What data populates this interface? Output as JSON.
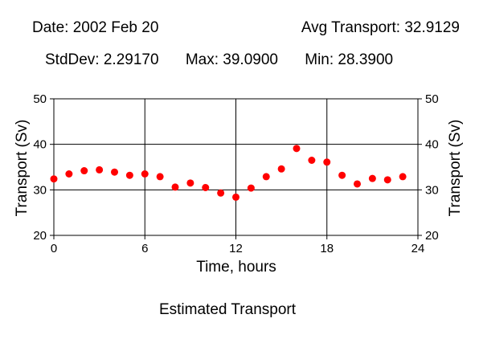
{
  "header": {
    "date": "Date: 2002 Feb 20",
    "avg": "Avg Transport: 32.9129",
    "stddev": "StdDev: 2.29170",
    "max": "Max: 39.0900",
    "min": "Min: 28.3900"
  },
  "caption": "Estimated Transport",
  "chart_data": {
    "type": "scatter",
    "title": "",
    "xlabel": "Time, hours",
    "ylabel": "Transport (Sv)",
    "xlim": [
      0,
      24
    ],
    "ylim": [
      20,
      50
    ],
    "xticks": [
      0,
      6,
      12,
      18,
      24
    ],
    "yticks": [
      20,
      30,
      40,
      50
    ],
    "grid": true,
    "marker_color": "#ff0000",
    "x": [
      0,
      1,
      2,
      3,
      4,
      5,
      6,
      7,
      8,
      9,
      10,
      11,
      12,
      13,
      14,
      15,
      16,
      17,
      18,
      19,
      20,
      21,
      22,
      23
    ],
    "y": [
      32.4,
      33.5,
      34.2,
      34.4,
      33.9,
      33.2,
      33.5,
      32.9,
      30.6,
      31.5,
      30.5,
      29.3,
      28.4,
      30.4,
      32.9,
      34.6,
      39.09,
      36.5,
      36.1,
      33.2,
      31.3,
      32.5,
      32.2,
      32.9
    ]
  }
}
